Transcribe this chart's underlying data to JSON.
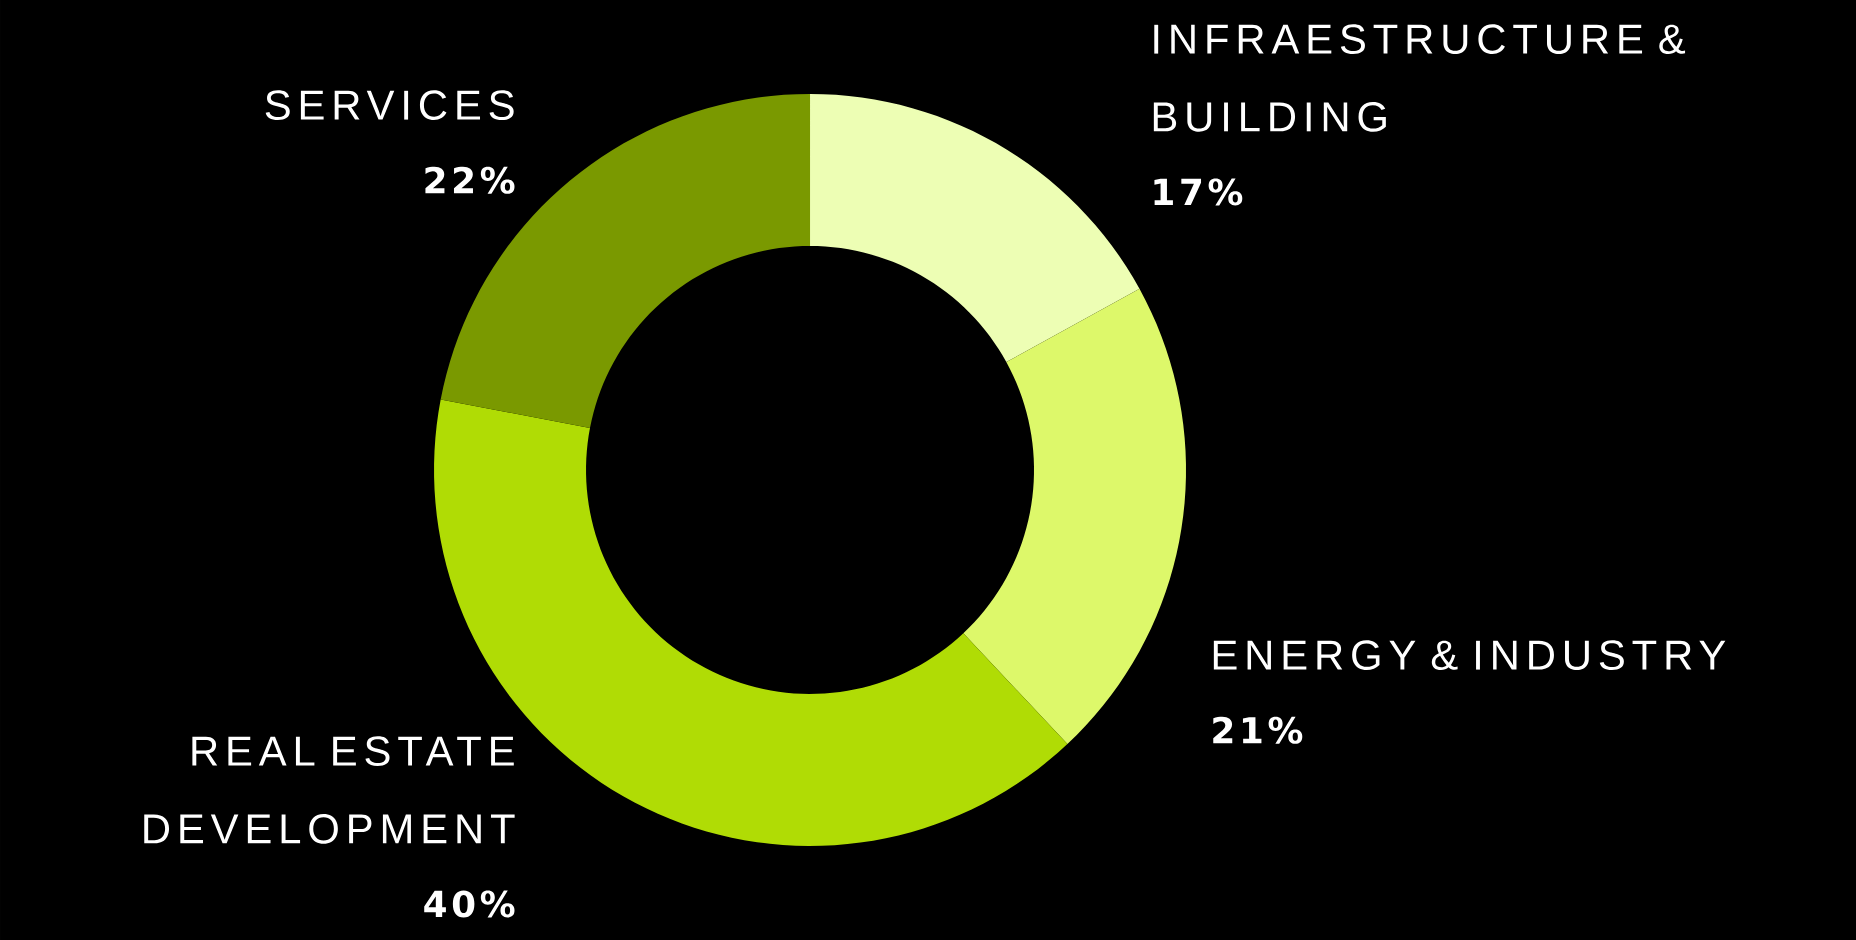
{
  "chart_data": {
    "type": "donut",
    "categories": [
      "INFRAESTRUCTURE & BUILDING",
      "ENERGY & INDUSTRY",
      "REAL ESTATE DEVELOPMENT",
      "SERVICES"
    ],
    "values": [
      17,
      21,
      40,
      22
    ],
    "value_labels": [
      "17%",
      "21%",
      "40%",
      "22%"
    ],
    "colors": [
      "#edfeb4",
      "#ddf86a",
      "#b0dc05",
      "#7a9900"
    ]
  }
}
